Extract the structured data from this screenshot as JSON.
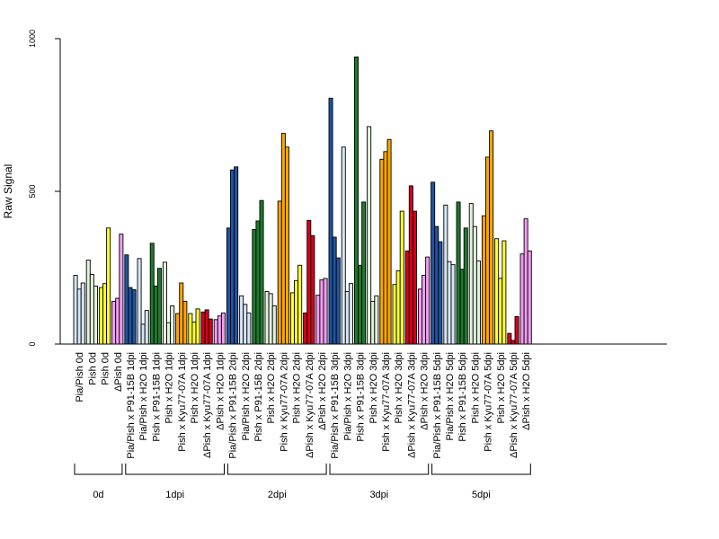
{
  "chart_data": {
    "type": "bar",
    "ylabel": "Raw Signal",
    "ylim": [
      0,
      1000
    ],
    "yticks": [
      0,
      500,
      1000
    ],
    "categories": [
      "Pia/Pish 0d",
      "Pish 0d",
      "Pish 0d",
      "ΔPish 0d",
      "Pia/Pish x P91-15B 1dpi",
      "Pia/Pish x H2O 1dpi",
      "Pish x P91-15B 1dpi",
      "Pish x H2O 1dpi",
      "Pish x Kyu77-07A 1dpi",
      "Pish x H2O 1dpi",
      "ΔPish x Kyu77-07A 1dpi",
      "ΔPish x H2O 1dpi",
      "Pia/Pish x P91-15B 2dpi",
      "Pia/Pish x H2O 2dpi",
      "Pish x P91-15B 2dpi",
      "Pish x H2O 2dpi",
      "Pish x Kyu77-07A 2dpi",
      "Pish x H2O 2dpi",
      "ΔPish x Kyu77-07A 2dpi",
      "ΔPish x H2O 2dpi",
      "Pia/Pish x P91-15B 3dpi",
      "Pia/Pish x H2O 3dpi",
      "Pish x P91-15B 3dpi",
      "Pish x H2O 3dpi",
      "Pish x Kyu77-07A 3dpi",
      "Pish x H2O 3dpi",
      "ΔPish x Kyu77-07A 3dpi",
      "ΔPish x H2O 3dpi",
      "Pia/Pish x P91-15B 5dpi",
      "Pia/Pish x H2O 5dpi",
      "Pish x P91-15B 5dpi",
      "Pish x H2O 5dpi",
      "Pish x Kyu77-07A 5dpi",
      "Pish x H2O 5dpi",
      "ΔPish x Kyu77-07A 5dpi",
      "ΔPish x H2O 5dpi"
    ],
    "colors": [
      "#d6e6f5",
      "#e2f2dc",
      "#ffff33",
      "#f29cf2",
      "#1f55a0",
      "#d6e6f5",
      "#1f7a2e",
      "#e2f2dc",
      "#ffa500",
      "#ffff33",
      "#d7001b",
      "#f29cf2",
      "#1f55a0",
      "#d6e6f5",
      "#1f7a2e",
      "#e2f2dc",
      "#ffa500",
      "#ffff33",
      "#d7001b",
      "#f29cf2",
      "#1f55a0",
      "#d6e6f5",
      "#1f7a2e",
      "#e2f2dc",
      "#ffa500",
      "#ffff33",
      "#d7001b",
      "#f29cf2",
      "#1f55a0",
      "#d6e6f5",
      "#1f7a2e",
      "#e2f2dc",
      "#ffa500",
      "#ffff33",
      "#d7001b",
      "#f29cf2"
    ],
    "values": [
      [
        225,
        180,
        200
      ],
      [
        275,
        228,
        190
      ],
      [
        185,
        198,
        380
      ],
      [
        140,
        150,
        360
      ],
      [
        292,
        185,
        178
      ],
      [
        280,
        65,
        110
      ],
      [
        330,
        190,
        248
      ],
      [
        268,
        70,
        125
      ],
      [
        100,
        200,
        140
      ],
      [
        100,
        72,
        115
      ],
      [
        105,
        112,
        82
      ],
      [
        80,
        92,
        102
      ],
      [
        380,
        570,
        580
      ],
      [
        158,
        130,
        102
      ],
      [
        375,
        403,
        470
      ],
      [
        172,
        165,
        125
      ],
      [
        468,
        690,
        645
      ],
      [
        168,
        208,
        258
      ],
      [
        102,
        405,
        355
      ],
      [
        160,
        210,
        215
      ],
      [
        805,
        350,
        282
      ],
      [
        645,
        172,
        198
      ],
      [
        940,
        258,
        465
      ],
      [
        712,
        140,
        158
      ],
      [
        605,
        630,
        670
      ],
      [
        195,
        240,
        435
      ],
      [
        305,
        518,
        435
      ],
      [
        180,
        225,
        285
      ],
      [
        530,
        385,
        335
      ],
      [
        455,
        270,
        260
      ],
      [
        465,
        245,
        380
      ],
      [
        460,
        385,
        272
      ],
      [
        420,
        612,
        698
      ],
      [
        345,
        215,
        338
      ],
      [
        35,
        12,
        90
      ],
      [
        295,
        410,
        305
      ]
    ],
    "groups": [
      {
        "label": "0d",
        "count": 4
      },
      {
        "label": "1dpi",
        "count": 8
      },
      {
        "label": "2dpi",
        "count": 8
      },
      {
        "label": "3dpi",
        "count": 8
      },
      {
        "label": "5dpi",
        "count": 8
      }
    ]
  }
}
